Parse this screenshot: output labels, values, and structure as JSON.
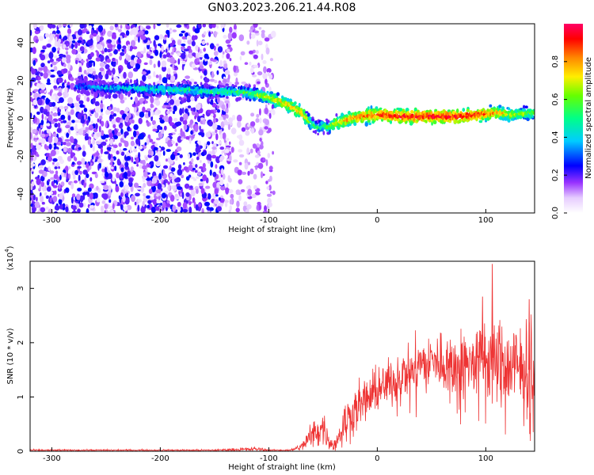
{
  "title": "GN03.2023.206.21.44.R08",
  "chart_data": [
    {
      "type": "heatmap",
      "xlabel": "Height of straight line (km)",
      "ylabel": "Frequency (Hz)",
      "xlim": [
        -320,
        145
      ],
      "ylim": [
        -50,
        50
      ],
      "x_ticks": [
        -300,
        -200,
        -100,
        0,
        100
      ],
      "y_ticks": [
        -40,
        -20,
        0,
        20,
        40
      ],
      "colorbar": {
        "label": "Normalized spectral amplitude",
        "range": [
          0,
          1
        ],
        "ticks": [
          0.0,
          0.2,
          0.4,
          0.6,
          0.8
        ],
        "colormap": "hsv-rainbow"
      },
      "ridge": {
        "description_free": true,
        "x": [
          -275,
          -250,
          -225,
          -200,
          -175,
          -150,
          -130,
          -115,
          -100,
          -85,
          -70,
          -60,
          -55,
          -50,
          -45,
          -40,
          -30,
          -15,
          0,
          20,
          40,
          60,
          80,
          95,
          110,
          125,
          145
        ],
        "y": [
          17,
          16,
          16,
          15,
          15,
          14,
          14,
          13,
          11,
          8,
          3,
          -3,
          -5,
          -4,
          -5,
          -3,
          -1,
          1,
          2,
          1,
          1,
          1,
          1,
          2,
          3,
          2,
          3
        ],
        "peak_amplitude": [
          0.35,
          0.4,
          0.45,
          0.5,
          0.5,
          0.5,
          0.55,
          0.6,
          0.7,
          0.75,
          0.8,
          0.6,
          0.5,
          0.55,
          0.6,
          0.7,
          0.8,
          0.85,
          0.9,
          0.95,
          0.95,
          0.95,
          0.95,
          0.9,
          0.8,
          0.7,
          0.6
        ]
      },
      "noise_extent_x": [
        -320,
        -95
      ]
    },
    {
      "type": "line",
      "xlabel": "Height of straight line (km)",
      "ylabel": "SNR (10 * v/v)",
      "y_multiplier": "(x10",
      "y_multiplier_exp": "4",
      "y_multiplier_close": ")",
      "xlim": [
        -320,
        145
      ],
      "ylim": [
        0,
        3.5
      ],
      "x_ticks": [
        -300,
        -200,
        -100,
        0,
        100
      ],
      "y_ticks": [
        0,
        1,
        2,
        3
      ],
      "color": "#ee3333",
      "envelope": {
        "x": [
          -320,
          -150,
          -110,
          -100,
          -80,
          -70,
          -60,
          -50,
          -45,
          -40,
          -30,
          -20,
          -10,
          0,
          10,
          20,
          30,
          40,
          50,
          60,
          70,
          80,
          90,
          100,
          105,
          110,
          120,
          130,
          140,
          145
        ],
        "mean": [
          0.02,
          0.02,
          0.04,
          0.02,
          0.02,
          0.08,
          0.3,
          0.45,
          0.2,
          0.1,
          0.5,
          0.8,
          0.95,
          1.1,
          1.25,
          1.4,
          1.5,
          1.6,
          1.65,
          1.65,
          1.6,
          1.6,
          1.65,
          1.7,
          1.75,
          1.6,
          1.55,
          1.5,
          1.5,
          1.5
        ],
        "spread": [
          0.01,
          0.01,
          0.03,
          0.01,
          0.01,
          0.05,
          0.2,
          0.25,
          0.1,
          0.08,
          0.3,
          0.3,
          0.3,
          0.3,
          0.3,
          0.3,
          0.35,
          0.35,
          0.35,
          0.4,
          0.4,
          0.45,
          0.45,
          0.5,
          0.6,
          0.55,
          0.6,
          0.65,
          0.65,
          0.65
        ]
      },
      "spikes": [
        {
          "x": 106,
          "y": 3.45
        },
        {
          "x": 97,
          "y": 2.85
        },
        {
          "x": 140,
          "y": 2.8
        }
      ]
    }
  ]
}
